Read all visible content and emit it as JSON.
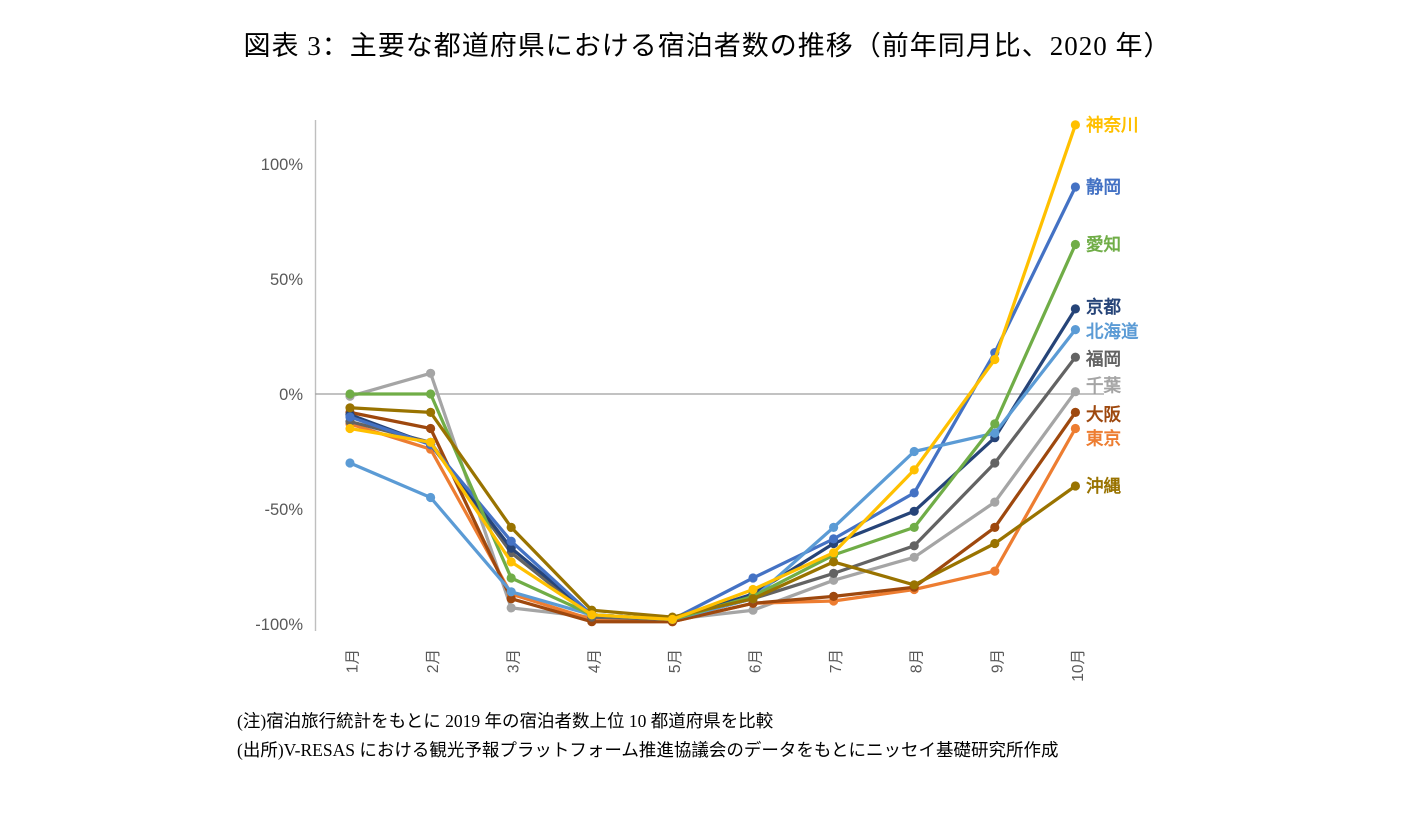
{
  "title": "図表 3：主要な都道府県における宿泊者数の推移（前年同月比、2020 年）",
  "notes": [
    "(注)宿泊旅行統計をもとに 2019 年の宿泊者数上位 10 都道府県を比較",
    "(出所)V-RESAS における観光予報プラットフォーム推進協議会のデータをもとにニッセイ基礎研究所作成"
  ],
  "colors": {
    "background": "#FFFFFF",
    "axis_line": "#BFBFBF",
    "zero_line": "#848484",
    "tick_text": "#595959"
  },
  "chart_data": {
    "type": "line",
    "title": "図表 3：主要な都道府県における宿泊者数の推移（前年同月比、2020 年）",
    "x_labels": [
      "1月",
      "2月",
      "3月",
      "4月",
      "5月",
      "6月",
      "7月",
      "8月",
      "9月",
      "10月"
    ],
    "y_ticks": [
      {
        "label": "100%",
        "value": 100
      },
      {
        "label": "50%",
        "value": 50
      },
      {
        "label": "0%",
        "value": 0
      },
      {
        "label": "-50%",
        "value": -50
      },
      {
        "label": "-100%",
        "value": -100
      }
    ],
    "ylim": [
      -100,
      113
    ],
    "grid": false,
    "zero_line": true,
    "legend_position": "right-end-of-line",
    "series": [
      {
        "id": "kanagawa",
        "name": "神奈川",
        "color": "#FFC000",
        "values": [
          -15,
          -21,
          -73,
          -96,
          -98,
          -85,
          -69,
          -33,
          15,
          117
        ]
      },
      {
        "id": "shizuoka",
        "name": "静岡",
        "color": "#4472C4",
        "values": [
          -10,
          -22,
          -64,
          -96,
          -98,
          -80,
          -63,
          -43,
          18,
          90
        ]
      },
      {
        "id": "aichi",
        "name": "愛知",
        "color": "#70AD47",
        "values": [
          0,
          0,
          -80,
          -96,
          -98,
          -88,
          -70,
          -58,
          -13,
          65
        ]
      },
      {
        "id": "kyoto",
        "name": "京都",
        "color": "#264478",
        "values": [
          -9,
          -22,
          -67,
          -96,
          -98,
          -87,
          -65,
          -51,
          -19,
          37
        ]
      },
      {
        "id": "hokkaido",
        "name": "北海道",
        "color": "#5B9BD5",
        "values": [
          -30,
          -45,
          -86,
          -96,
          -98,
          -89,
          -58,
          -25,
          -17,
          28
        ]
      },
      {
        "id": "fukuoka",
        "name": "福岡",
        "color": "#636363",
        "values": [
          -12,
          -21,
          -69,
          -97,
          -98,
          -89,
          -78,
          -66,
          -30,
          16
        ]
      },
      {
        "id": "chiba",
        "name": "千葉",
        "color": "#A5A5A5",
        "values": [
          -1,
          9,
          -93,
          -97,
          -98,
          -94,
          -81,
          -71,
          -47,
          1
        ]
      },
      {
        "id": "osaka",
        "name": "大阪",
        "color": "#9E480E",
        "values": [
          -8,
          -15,
          -89,
          -99,
          -99,
          -91,
          -88,
          -84,
          -58,
          -8
        ]
      },
      {
        "id": "tokyo",
        "name": "東京",
        "color": "#ED7D31",
        "values": [
          -13,
          -24,
          -87,
          -98,
          -99,
          -91,
          -90,
          -85,
          -77,
          -15
        ]
      },
      {
        "id": "okinawa",
        "name": "沖縄",
        "color": "#997300",
        "values": [
          -6,
          -8,
          -58,
          -94,
          -97,
          -89,
          -73,
          -83,
          -65,
          -40
        ]
      }
    ]
  }
}
